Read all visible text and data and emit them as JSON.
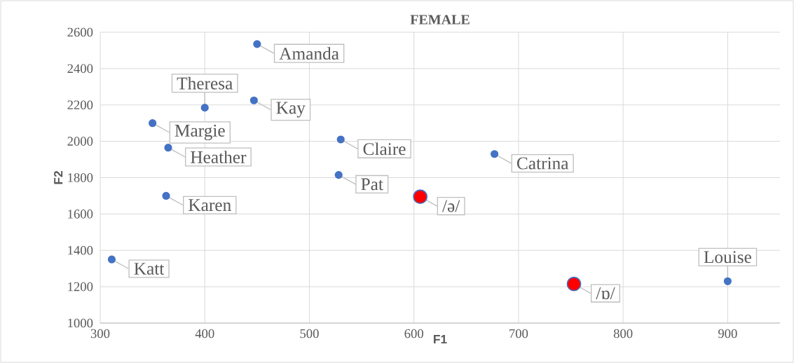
{
  "chart_data": {
    "type": "scatter",
    "title": "FEMALE",
    "xlabel": "F1",
    "ylabel": "F2",
    "series": [
      {
        "color": "#4472c4",
        "x": [
          450,
          400,
          447,
          350,
          365,
          530,
          677,
          528,
          363,
          311,
          900
        ],
        "values": [
          2535,
          2185,
          2225,
          2100,
          1965,
          2010,
          1930,
          1815,
          1700,
          1350,
          1230
        ]
      },
      {
        "color": "#ff0000",
        "x": [
          606,
          753
        ],
        "values": [
          1695,
          1215
        ]
      }
    ],
    "annotations": [
      {
        "text": "Amanda",
        "x": 450,
        "y": 2535
      },
      {
        "text": "Theresa",
        "x": 400,
        "y": 2185
      },
      {
        "text": "Kay",
        "x": 447,
        "y": 2225
      },
      {
        "text": "Margie",
        "x": 350,
        "y": 2100
      },
      {
        "text": "Heather",
        "x": 365,
        "y": 1965
      },
      {
        "text": "Claire",
        "x": 530,
        "y": 2010
      },
      {
        "text": "Catrina",
        "x": 677,
        "y": 1930
      },
      {
        "text": "Pat",
        "x": 528,
        "y": 1815
      },
      {
        "text": "Karen",
        "x": 363,
        "y": 1700
      },
      {
        "text": "/ə/",
        "x": 606,
        "y": 1695
      },
      {
        "text": "Katt",
        "x": 311,
        "y": 1350
      },
      {
        "text": "/ɒ/",
        "x": 753,
        "y": 1215
      },
      {
        "text": "Louise",
        "x": 900,
        "y": 1230
      }
    ],
    "xlim": [
      300,
      950
    ],
    "xticks": [
      300,
      400,
      500,
      600,
      700,
      800,
      900
    ],
    "ylim": [
      1000,
      2600
    ],
    "yticks": [
      1000,
      1200,
      1400,
      1600,
      1800,
      2000,
      2200,
      2400,
      2600
    ],
    "grid": true,
    "marker": "circle"
  }
}
